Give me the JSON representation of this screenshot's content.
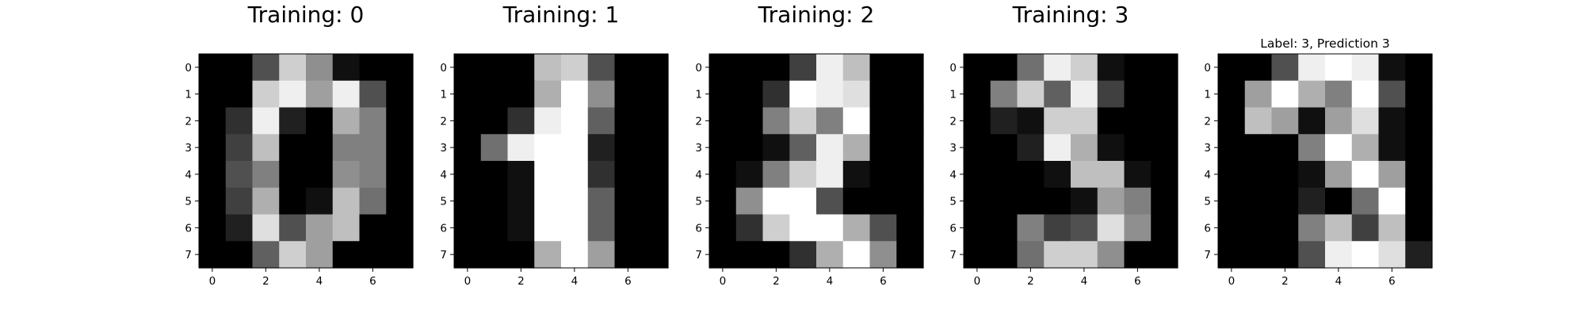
{
  "chart_data": [
    {
      "type": "heatmap",
      "colormap": "gray",
      "title": "Training: 0",
      "xticks": [
        "0",
        "2",
        "4",
        "6"
      ],
      "yticks": [
        "0",
        "1",
        "2",
        "3",
        "4",
        "5",
        "6",
        "7"
      ],
      "values": [
        [
          0,
          0,
          5,
          13,
          9,
          1,
          0,
          0
        ],
        [
          0,
          0,
          13,
          15,
          10,
          15,
          5,
          0
        ],
        [
          0,
          3,
          15,
          2,
          0,
          11,
          8,
          0
        ],
        [
          0,
          4,
          12,
          0,
          0,
          8,
          8,
          0
        ],
        [
          0,
          5,
          8,
          0,
          0,
          9,
          8,
          0
        ],
        [
          0,
          4,
          11,
          0,
          1,
          12,
          7,
          0
        ],
        [
          0,
          2,
          14,
          5,
          10,
          12,
          0,
          0
        ],
        [
          0,
          0,
          6,
          13,
          10,
          0,
          0,
          0
        ]
      ]
    },
    {
      "type": "heatmap",
      "colormap": "gray",
      "title": "Training: 1",
      "xticks": [
        "0",
        "2",
        "4",
        "6"
      ],
      "yticks": [
        "0",
        "1",
        "2",
        "3",
        "4",
        "5",
        "6",
        "7"
      ],
      "values": [
        [
          0,
          0,
          0,
          12,
          13,
          5,
          0,
          0
        ],
        [
          0,
          0,
          0,
          11,
          16,
          9,
          0,
          0
        ],
        [
          0,
          0,
          3,
          15,
          16,
          6,
          0,
          0
        ],
        [
          0,
          7,
          15,
          16,
          16,
          2,
          0,
          0
        ],
        [
          0,
          0,
          1,
          16,
          16,
          3,
          0,
          0
        ],
        [
          0,
          0,
          1,
          16,
          16,
          6,
          0,
          0
        ],
        [
          0,
          0,
          1,
          16,
          16,
          6,
          0,
          0
        ],
        [
          0,
          0,
          0,
          11,
          16,
          10,
          0,
          0
        ]
      ]
    },
    {
      "type": "heatmap",
      "colormap": "gray",
      "title": "Training: 2",
      "xticks": [
        "0",
        "2",
        "4",
        "6"
      ],
      "yticks": [
        "0",
        "1",
        "2",
        "3",
        "4",
        "5",
        "6",
        "7"
      ],
      "values": [
        [
          0,
          0,
          0,
          4,
          15,
          12,
          0,
          0
        ],
        [
          0,
          0,
          3,
          16,
          15,
          14,
          0,
          0
        ],
        [
          0,
          0,
          8,
          13,
          8,
          16,
          0,
          0
        ],
        [
          0,
          0,
          1,
          6,
          15,
          11,
          0,
          0
        ],
        [
          0,
          1,
          8,
          13,
          15,
          1,
          0,
          0
        ],
        [
          0,
          9,
          16,
          16,
          5,
          0,
          0,
          0
        ],
        [
          0,
          3,
          13,
          16,
          16,
          11,
          5,
          0
        ],
        [
          0,
          0,
          0,
          3,
          11,
          16,
          9,
          0
        ]
      ]
    },
    {
      "type": "heatmap",
      "colormap": "gray",
      "title": "Training: 3",
      "xticks": [
        "0",
        "2",
        "4",
        "6"
      ],
      "yticks": [
        "0",
        "1",
        "2",
        "3",
        "4",
        "5",
        "6",
        "7"
      ],
      "values": [
        [
          0,
          0,
          7,
          15,
          13,
          1,
          0,
          0
        ],
        [
          0,
          8,
          13,
          6,
          15,
          4,
          0,
          0
        ],
        [
          0,
          2,
          1,
          13,
          13,
          0,
          0,
          0
        ],
        [
          0,
          0,
          2,
          15,
          11,
          1,
          0,
          0
        ],
        [
          0,
          0,
          0,
          1,
          12,
          12,
          1,
          0
        ],
        [
          0,
          0,
          0,
          0,
          1,
          10,
          8,
          0
        ],
        [
          0,
          0,
          8,
          4,
          5,
          14,
          9,
          0
        ],
        [
          0,
          0,
          7,
          13,
          13,
          9,
          0,
          0
        ]
      ]
    },
    {
      "type": "heatmap",
      "colormap": "gray",
      "title": "Label: 3, Prediction 3",
      "xticks": [
        "0",
        "2",
        "4",
        "6"
      ],
      "yticks": [
        "0",
        "1",
        "2",
        "3",
        "4",
        "5",
        "6",
        "7"
      ],
      "values": [
        [
          0,
          0,
          5,
          15,
          16,
          15,
          1,
          0
        ],
        [
          0,
          10,
          16,
          11,
          8,
          16,
          5,
          0
        ],
        [
          0,
          12,
          10,
          1,
          10,
          14,
          1,
          0
        ],
        [
          0,
          0,
          0,
          8,
          16,
          11,
          1,
          0
        ],
        [
          0,
          0,
          0,
          1,
          10,
          16,
          10,
          0
        ],
        [
          0,
          0,
          0,
          2,
          0,
          7,
          16,
          0
        ],
        [
          0,
          0,
          0,
          8,
          12,
          4,
          12,
          0
        ],
        [
          0,
          0,
          0,
          5,
          15,
          16,
          14,
          2
        ]
      ]
    }
  ]
}
